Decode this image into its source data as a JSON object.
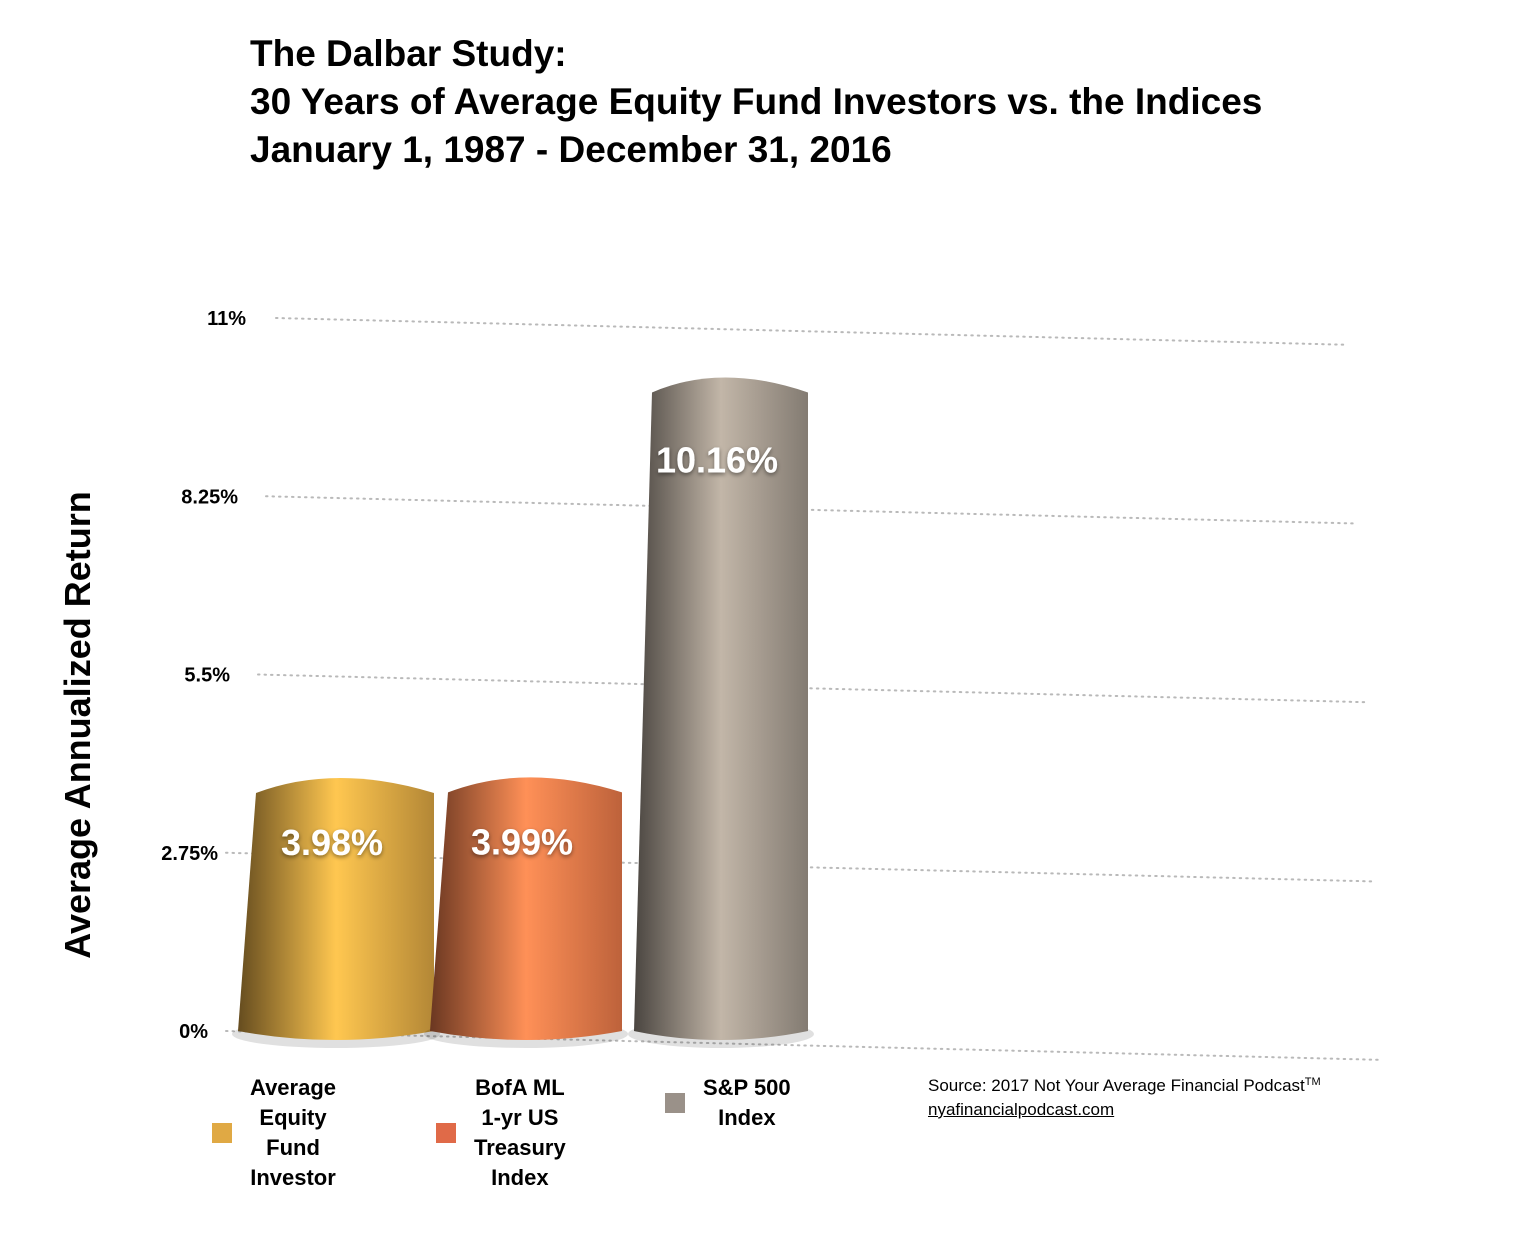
{
  "chart_data": {
    "type": "bar",
    "title_lines": [
      "The Dalbar Study:",
      "30 Years of Average Equity Fund Investors vs. the Indices",
      "January 1, 1987 - December 31, 2016"
    ],
    "ylabel": "Average Annualized Return",
    "ylim": [
      0,
      11
    ],
    "yticks": [
      0,
      2.75,
      5.5,
      8.25,
      11
    ],
    "ytick_labels": [
      "0%",
      "2.75%",
      "5.5%",
      "8.25%",
      "11%"
    ],
    "grid": true,
    "categories": [
      "Average Equity Fund Investor",
      "BofA ML 1-yr US Treasury Index",
      "S&P 500 Index"
    ],
    "values": [
      3.98,
      3.99,
      10.16
    ],
    "value_labels": [
      "3.98%",
      "3.99%",
      "10.16%"
    ],
    "colors": [
      "#e0a944",
      "#ec7a4a",
      "#a49a8e"
    ],
    "legend": {
      "placement": "bottom",
      "entries": [
        {
          "label_lines": [
            "Average",
            "Equity",
            "Fund",
            "Investor"
          ],
          "color": "#e0a944"
        },
        {
          "label_lines": [
            "BofA ML",
            "1-yr US",
            "Treasury",
            "Index"
          ],
          "color": "#e06a48"
        },
        {
          "label_lines": [
            "S&P 500",
            "Index"
          ],
          "color": "#9a9189"
        }
      ]
    }
  },
  "source": {
    "text": "Source: 2017 Not Your Average Financial Podcast",
    "mark": "TM",
    "url_text": "nyafinancialpodcast.com"
  }
}
